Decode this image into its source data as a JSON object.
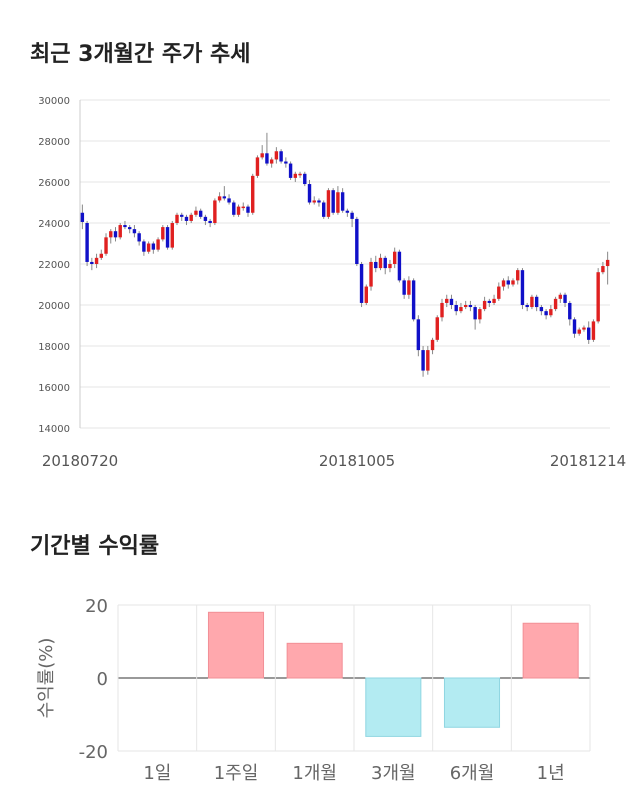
{
  "sections": {
    "price_title": "최근 3개월간 주가 추세",
    "return_title": "기간별 수익률"
  },
  "colors": {
    "up": "#e02020",
    "down": "#1010c8",
    "positive_bar": "#ffa8ad",
    "negative_bar": "#b3ebf2",
    "grid": "#e6e6e6",
    "text": "#222222"
  },
  "chart_data": [
    {
      "type": "candlestick",
      "title": "최근 3개월간 주가 추세",
      "ylim": [
        14000,
        30000
      ],
      "y_ticks": [
        14000,
        16000,
        18000,
        20000,
        22000,
        24000,
        26000,
        28000,
        30000
      ],
      "x_tick_labels": [
        "20180720",
        "20181005",
        "20181214"
      ],
      "grid": true,
      "candles": [
        [
          24500,
          24050,
          24900,
          23700
        ],
        [
          24000,
          22100,
          24100,
          21900
        ],
        [
          22100,
          22000,
          22300,
          21700
        ],
        [
          22000,
          22300,
          22500,
          21800
        ],
        [
          22300,
          22500,
          22700,
          22200
        ],
        [
          22500,
          23300,
          23500,
          22400
        ],
        [
          23300,
          23600,
          23700,
          23000
        ],
        [
          23600,
          23300,
          23800,
          23100
        ],
        [
          23300,
          23900,
          24000,
          23200
        ],
        [
          23900,
          23800,
          24100,
          23700
        ],
        [
          23800,
          23700,
          23900,
          23500
        ],
        [
          23700,
          23500,
          23900,
          23300
        ],
        [
          23500,
          23100,
          23600,
          22900
        ],
        [
          23100,
          22600,
          23200,
          22400
        ],
        [
          22600,
          23000,
          23100,
          22500
        ],
        [
          23000,
          22700,
          23100,
          22500
        ],
        [
          22700,
          23200,
          23300,
          22600
        ],
        [
          23200,
          23800,
          23900,
          23100
        ],
        [
          23800,
          22800,
          23900,
          22700
        ],
        [
          22800,
          24000,
          24100,
          22700
        ],
        [
          24000,
          24400,
          24500,
          23900
        ],
        [
          24400,
          24300,
          24500,
          24100
        ],
        [
          24300,
          24100,
          24400,
          23900
        ],
        [
          24100,
          24400,
          24500,
          24000
        ],
        [
          24400,
          24600,
          24800,
          24300
        ],
        [
          24600,
          24300,
          24700,
          24200
        ],
        [
          24300,
          24100,
          24400,
          23900
        ],
        [
          24100,
          24000,
          24200,
          23800
        ],
        [
          24000,
          25100,
          25200,
          23900
        ],
        [
          25100,
          25300,
          25500,
          25000
        ],
        [
          25300,
          25200,
          25800,
          25100
        ],
        [
          25200,
          25000,
          25400,
          24900
        ],
        [
          25000,
          24400,
          25100,
          24300
        ],
        [
          24400,
          24800,
          24900,
          24300
        ],
        [
          24800,
          24800,
          25000,
          24600
        ],
        [
          24800,
          24500,
          24900,
          24300
        ],
        [
          24500,
          26300,
          26400,
          24400
        ],
        [
          26300,
          27200,
          27300,
          26200
        ],
        [
          27200,
          27400,
          27800,
          27100
        ],
        [
          27400,
          26900,
          28400,
          26800
        ],
        [
          26900,
          27100,
          27200,
          26700
        ],
        [
          27100,
          27500,
          27700,
          26900
        ],
        [
          27500,
          27000,
          27600,
          26900
        ],
        [
          27000,
          26900,
          27200,
          26700
        ],
        [
          26900,
          26200,
          27000,
          26100
        ],
        [
          26200,
          26400,
          26500,
          26000
        ],
        [
          26400,
          26400,
          26500,
          26200
        ],
        [
          26400,
          25900,
          26500,
          25800
        ],
        [
          25900,
          25000,
          26100,
          24900
        ],
        [
          25000,
          25100,
          25300,
          24900
        ],
        [
          25100,
          25000,
          25200,
          24800
        ],
        [
          25000,
          24300,
          25100,
          24200
        ],
        [
          24300,
          25600,
          25700,
          24200
        ],
        [
          25600,
          24500,
          25700,
          24400
        ],
        [
          24500,
          25500,
          25800,
          24400
        ],
        [
          25500,
          24600,
          25700,
          24500
        ],
        [
          24600,
          24500,
          24700,
          24300
        ],
        [
          24500,
          24200,
          24600,
          23800
        ],
        [
          24200,
          22000,
          24300,
          21900
        ],
        [
          22000,
          20100,
          22100,
          19900
        ],
        [
          20100,
          20900,
          21000,
          20000
        ],
        [
          20900,
          22100,
          22300,
          20700
        ],
        [
          22100,
          21800,
          22400,
          21600
        ],
        [
          21800,
          22300,
          22500,
          21700
        ],
        [
          22300,
          21800,
          22400,
          21500
        ],
        [
          21800,
          22000,
          22200,
          21600
        ],
        [
          22000,
          22600,
          22800,
          21800
        ],
        [
          22600,
          21200,
          22700,
          21100
        ],
        [
          21200,
          20500,
          21300,
          20300
        ],
        [
          20500,
          21200,
          21400,
          20300
        ],
        [
          21200,
          19300,
          21300,
          19200
        ],
        [
          19300,
          17800,
          19500,
          17500
        ],
        [
          17800,
          16800,
          18000,
          16500
        ],
        [
          16800,
          17800,
          18000,
          16600
        ],
        [
          17800,
          18300,
          18400,
          17600
        ],
        [
          18300,
          19400,
          19500,
          18200
        ],
        [
          19400,
          20100,
          20300,
          19200
        ],
        [
          20100,
          20300,
          20500,
          19900
        ],
        [
          20300,
          20000,
          20500,
          19800
        ],
        [
          20000,
          19700,
          20200,
          19500
        ],
        [
          19700,
          19900,
          20100,
          19600
        ],
        [
          19900,
          20000,
          20200,
          19800
        ],
        [
          20000,
          19900,
          20200,
          19700
        ],
        [
          19900,
          19300,
          20000,
          18800
        ],
        [
          19300,
          19800,
          19900,
          19100
        ],
        [
          19800,
          20200,
          20400,
          19700
        ],
        [
          20200,
          20100,
          20300,
          19900
        ],
        [
          20100,
          20300,
          20500,
          20000
        ],
        [
          20300,
          20900,
          21100,
          20200
        ],
        [
          20900,
          21200,
          21300,
          20700
        ],
        [
          21200,
          21000,
          21400,
          20800
        ],
        [
          21000,
          21200,
          21300,
          20900
        ],
        [
          21200,
          21700,
          21800,
          21000
        ],
        [
          21700,
          20000,
          21800,
          19800
        ],
        [
          20000,
          19900,
          20100,
          19700
        ],
        [
          19900,
          20400,
          20500,
          19800
        ],
        [
          20400,
          19900,
          20500,
          19700
        ],
        [
          19900,
          19700,
          20000,
          19500
        ],
        [
          19700,
          19500,
          19800,
          19300
        ],
        [
          19500,
          19800,
          20000,
          19400
        ],
        [
          19800,
          20300,
          20400,
          19700
        ],
        [
          20300,
          20500,
          20600,
          20100
        ],
        [
          20500,
          20100,
          20600,
          19900
        ],
        [
          20100,
          19300,
          20200,
          19000
        ],
        [
          19300,
          18600,
          19400,
          18400
        ],
        [
          18600,
          18800,
          18900,
          18500
        ],
        [
          18800,
          18900,
          19000,
          18700
        ],
        [
          18900,
          18300,
          19200,
          18100
        ],
        [
          18300,
          19200,
          19300,
          18200
        ],
        [
          19200,
          21600,
          21800,
          19100
        ],
        [
          21600,
          21900,
          22100,
          21500
        ],
        [
          21900,
          22200,
          22600,
          21000
        ]
      ]
    },
    {
      "type": "bar",
      "categories": [
        "1일",
        "1주일",
        "1개월",
        "3개월",
        "6개월",
        "1년"
      ],
      "values": [
        0,
        18,
        9.5,
        -16,
        -13.5,
        15
      ],
      "ylabel": "수익률(%)",
      "ylim": [
        -20,
        20
      ],
      "y_ticks": [
        -20,
        0,
        20
      ],
      "grid": true
    }
  ]
}
